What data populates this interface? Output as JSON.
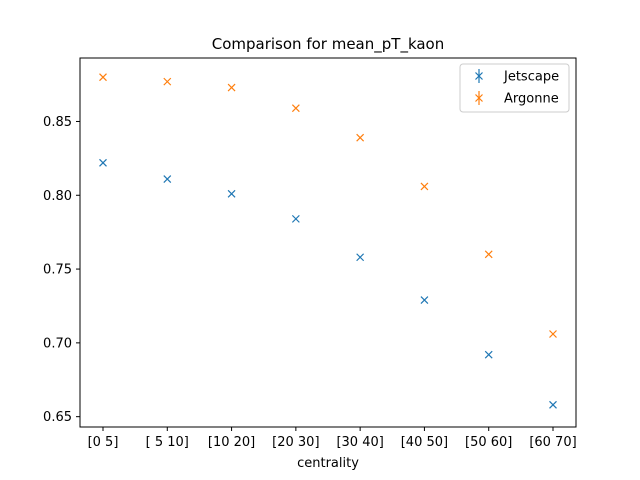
{
  "chart_data": {
    "type": "scatter",
    "title": "Comparison for mean_pT_kaon",
    "xlabel": "centrality",
    "ylabel": "",
    "categories": [
      "[0 5]",
      "[ 5 10]",
      "[10 20]",
      "[20 30]",
      "[30 40]",
      "[40 50]",
      "[50 60]",
      "[60 70]"
    ],
    "ylim": [
      0.643,
      0.893
    ],
    "yticks": [
      0.65,
      0.7,
      0.75,
      0.8,
      0.85
    ],
    "ytick_labels": [
      "0.65",
      "0.70",
      "0.75",
      "0.80",
      "0.85"
    ],
    "grid": false,
    "legend_position": "top-right",
    "series": [
      {
        "name": "Jetscape",
        "color": "#1f77b4",
        "marker": "x",
        "values": [
          0.822,
          0.811,
          0.801,
          0.784,
          0.758,
          0.729,
          0.692,
          0.658
        ]
      },
      {
        "name": "Argonne",
        "color": "#ff7f0e",
        "marker": "x",
        "values": [
          0.88,
          0.877,
          0.873,
          0.859,
          0.839,
          0.806,
          0.76,
          0.706
        ]
      }
    ]
  }
}
